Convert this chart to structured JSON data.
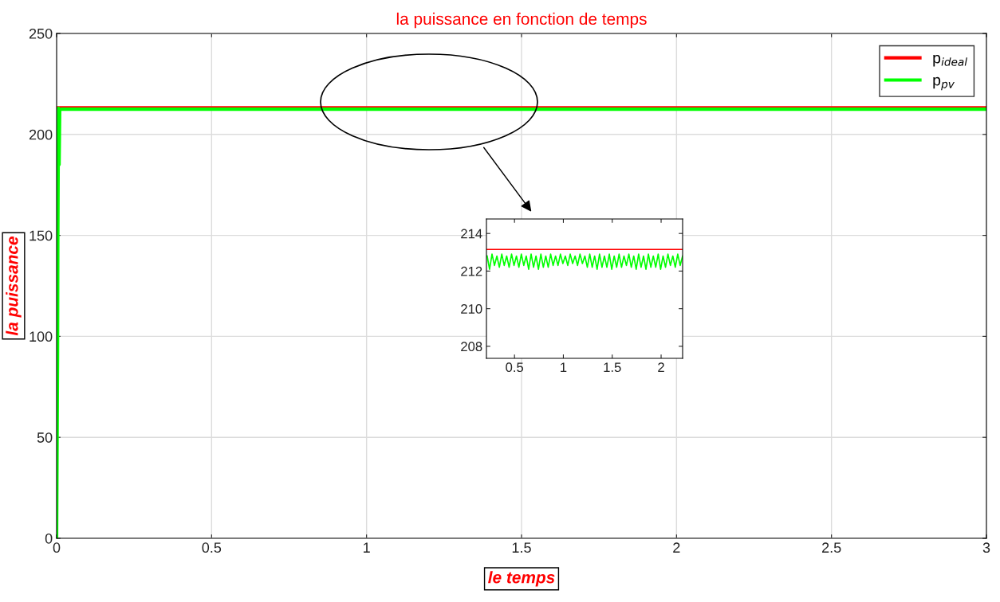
{
  "chart_data": [
    {
      "type": "line",
      "title": "la puissance en fonction de temps",
      "xlabel": "le temps",
      "ylabel": "la puissance",
      "xlim": [
        0,
        3
      ],
      "ylim": [
        0,
        250
      ],
      "xticks": [
        0,
        0.5,
        1,
        1.5,
        2,
        2.5,
        3
      ],
      "yticks": [
        0,
        50,
        100,
        150,
        200,
        250
      ],
      "grid": true,
      "legend": "top right",
      "series": [
        {
          "name": "p$_{ideal}$",
          "color": "#ff0000",
          "x": [
            0.005,
            3
          ],
          "values": [
            213.2,
            213.2
          ]
        },
        {
          "name": "p$_{pv}$",
          "color": "#00ff00",
          "x": [
            0,
            0.003,
            0.004,
            0.006,
            0.008,
            0.01,
            0.015,
            0.03,
            0.5,
            1,
            1.5,
            2,
            2.5,
            3
          ],
          "values": [
            0,
            90,
            150,
            213,
            185,
            212,
            212.5,
            212.5,
            212.5,
            212.5,
            212.5,
            212.5,
            212.5,
            212.5
          ]
        }
      ]
    },
    {
      "type": "line",
      "xlim": [
        0.213,
        2.22
      ],
      "ylim": [
        207.36,
        214.77
      ],
      "xticks": [
        0.5,
        1,
        1.5,
        2
      ],
      "yticks": [
        208,
        210,
        212,
        214
      ],
      "grid": false,
      "legend": false,
      "series": [
        {
          "color": "#ff0000",
          "x": [
            0.213,
            2.22
          ],
          "values": [
            213.15,
            213.15
          ]
        },
        {
          "color": "#00ff00",
          "x": [
            0.22,
            0.245,
            0.27,
            0.295,
            0.32,
            0.345,
            0.37,
            0.395,
            0.42,
            0.445,
            0.47,
            0.495,
            0.52,
            0.545,
            0.57,
            0.595,
            0.62,
            0.645,
            0.67,
            0.695,
            0.72,
            0.745,
            0.77,
            0.795,
            0.82,
            0.845,
            0.87,
            0.895,
            0.92,
            0.945,
            0.97,
            0.995,
            1.02,
            1.045,
            1.07,
            1.095,
            1.12,
            1.145,
            1.17,
            1.195,
            1.22,
            1.245,
            1.27,
            1.295,
            1.32,
            1.345,
            1.37,
            1.395,
            1.42,
            1.445,
            1.47,
            1.495,
            1.52,
            1.545,
            1.57,
            1.595,
            1.62,
            1.645,
            1.67,
            1.695,
            1.72,
            1.745,
            1.77,
            1.795,
            1.82,
            1.845,
            1.87,
            1.895,
            1.92,
            1.945,
            1.97,
            1.995,
            2.02,
            2.045,
            2.07,
            2.095,
            2.12,
            2.145,
            2.17,
            2.195,
            2.22
          ],
          "values": [
            212.8,
            212.1,
            212.9,
            212.3,
            212.8,
            212.2,
            212.9,
            212.3,
            212.8,
            212.2,
            212.9,
            212.3,
            212.8,
            212.2,
            212.9,
            212.3,
            212.8,
            212.1,
            212.9,
            212.2,
            212.8,
            212.1,
            212.9,
            212.2,
            212.8,
            212.2,
            212.9,
            212.3,
            212.8,
            212.3,
            212.9,
            212.4,
            212.8,
            212.3,
            212.9,
            212.4,
            212.8,
            212.3,
            212.9,
            212.4,
            212.8,
            212.2,
            212.9,
            212.2,
            212.8,
            212.1,
            212.9,
            212.2,
            212.8,
            212.2,
            212.9,
            212.1,
            212.8,
            212.2,
            212.9,
            212.2,
            212.8,
            212.3,
            212.9,
            212.2,
            212.8,
            212.1,
            212.9,
            212.2,
            212.8,
            212.1,
            212.9,
            212.2,
            212.8,
            212.2,
            212.9,
            212.1,
            212.8,
            212.2,
            212.9,
            212.3,
            212.8,
            212.2,
            212.9,
            212.3,
            212.8
          ]
        }
      ]
    }
  ]
}
